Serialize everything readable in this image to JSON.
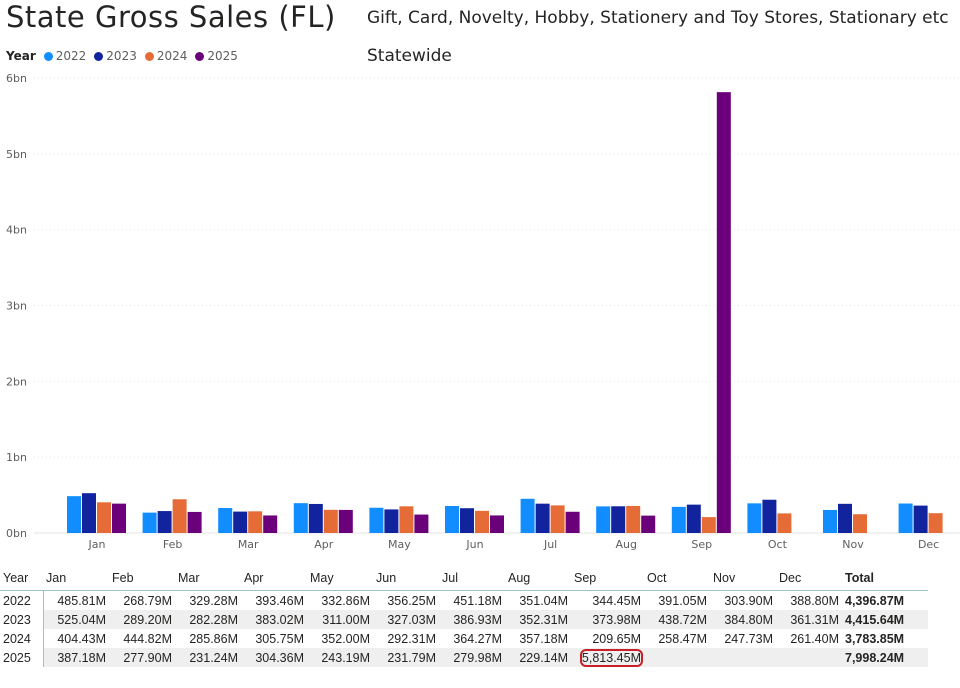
{
  "header": {
    "title": "State Gross Sales (FL)",
    "subtitle": "Gift, Card, Novelty, Hobby, Stationery and Toy Stores, Stationary etc",
    "region": "Statewide"
  },
  "chart_data": {
    "type": "bar",
    "legend_title": "Year",
    "legend_position": "top-left",
    "categories": [
      "Jan",
      "Feb",
      "Mar",
      "Apr",
      "May",
      "Jun",
      "Jul",
      "Aug",
      "Sep",
      "Oct",
      "Nov",
      "Dec"
    ],
    "y_ticks": [
      "0bn",
      "1bn",
      "2bn",
      "3bn",
      "4bn",
      "5bn",
      "6bn"
    ],
    "ylim": [
      0,
      6000
    ],
    "unit": "M",
    "series": [
      {
        "name": "2022",
        "color": "#118DFF",
        "values": [
          485.81,
          268.79,
          329.28,
          393.46,
          332.86,
          356.25,
          451.18,
          351.04,
          344.45,
          391.05,
          303.9,
          388.8
        ]
      },
      {
        "name": "2023",
        "color": "#12239E",
        "values": [
          525.04,
          289.2,
          282.28,
          383.02,
          311.0,
          327.03,
          386.93,
          352.31,
          373.98,
          438.72,
          384.8,
          361.31
        ]
      },
      {
        "name": "2024",
        "color": "#E66C37",
        "values": [
          404.43,
          444.82,
          285.86,
          305.75,
          352.0,
          292.31,
          364.27,
          357.18,
          209.65,
          258.47,
          247.73,
          261.4
        ]
      },
      {
        "name": "2025",
        "color": "#6B007B",
        "values": [
          387.18,
          277.9,
          231.24,
          304.36,
          243.19,
          231.79,
          279.98,
          229.14,
          5813.45,
          null,
          null,
          null
        ]
      }
    ]
  },
  "table": {
    "headers": [
      "Year",
      "Jan",
      "Feb",
      "Mar",
      "Apr",
      "May",
      "Jun",
      "Jul",
      "Aug",
      "Sep",
      "Oct",
      "Nov",
      "Dec",
      "Total"
    ],
    "rows": [
      [
        "2022",
        "485.81M",
        "268.79M",
        "329.28M",
        "393.46M",
        "332.86M",
        "356.25M",
        "451.18M",
        "351.04M",
        "344.45M",
        "391.05M",
        "303.90M",
        "388.80M",
        "4,396.87M"
      ],
      [
        "2023",
        "525.04M",
        "289.20M",
        "282.28M",
        "383.02M",
        "311.00M",
        "327.03M",
        "386.93M",
        "352.31M",
        "373.98M",
        "438.72M",
        "384.80M",
        "361.31M",
        "4,415.64M"
      ],
      [
        "2024",
        "404.43M",
        "444.82M",
        "285.86M",
        "305.75M",
        "352.00M",
        "292.31M",
        "364.27M",
        "357.18M",
        "209.65M",
        "258.47M",
        "247.73M",
        "261.40M",
        "3,783.85M"
      ],
      [
        "2025",
        "387.18M",
        "277.90M",
        "231.24M",
        "304.36M",
        "243.19M",
        "231.79M",
        "279.98M",
        "229.14M",
        "5,813.45M",
        "",
        "",
        "",
        "7,998.24M"
      ]
    ]
  }
}
